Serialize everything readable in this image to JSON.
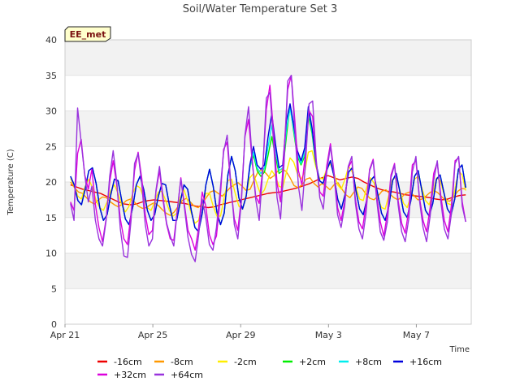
{
  "chart_data": {
    "type": "line",
    "title": "Soil/Water Temperature Set 3",
    "station_badge": "EE_met",
    "xlabel": "Time",
    "ylabel": "Temperature (C)",
    "ylim": [
      0,
      40
    ],
    "yticks": [
      0,
      5,
      10,
      15,
      20,
      25,
      30,
      35,
      40
    ],
    "xlim": [
      "2024-04-21",
      "2024-05-09T12:00"
    ],
    "xticks": [
      {
        "date": "2024-04-21",
        "label": "Apr 21"
      },
      {
        "date": "2024-04-25",
        "label": "Apr 25"
      },
      {
        "date": "2024-04-29",
        "label": "Apr 29"
      },
      {
        "date": "2024-05-03",
        "label": "May 3"
      },
      {
        "date": "2024-05-07",
        "label": "May 7"
      }
    ],
    "grid": true,
    "legend_position": "bottom",
    "series": [
      {
        "name": "-16cm",
        "color": "#ee0000",
        "x_start": "2024-04-21T06:00",
        "x_end": "2024-05-09T06:00",
        "values": [
          19.6,
          19.3,
          19.0,
          18.8,
          18.6,
          18.4,
          18.0,
          17.6,
          17.2,
          16.9,
          16.8,
          16.9,
          17.2,
          17.4,
          17.5,
          17.4,
          17.3,
          17.2,
          17.1,
          17.0,
          16.8,
          16.6,
          16.5,
          16.4,
          16.5,
          16.8,
          17.0,
          17.2,
          17.4,
          17.6,
          17.8,
          18.0,
          18.2,
          18.4,
          18.5,
          18.6,
          18.8,
          19.0,
          19.2,
          19.5,
          19.8,
          20.2,
          20.6,
          20.9,
          20.6,
          20.3,
          20.5,
          20.7,
          20.5,
          20.0,
          19.6,
          19.2,
          18.9,
          18.7,
          18.6,
          18.4,
          18.2,
          18.1,
          18.0,
          17.9,
          17.8,
          17.6,
          17.5,
          17.6,
          17.9,
          18.1,
          18.2
        ]
      },
      {
        "name": "-8cm",
        "color": "#ff9900",
        "x_start": "2024-04-21T06:00",
        "x_end": "2024-05-09T06:00",
        "values": [
          20.0,
          19.2,
          18.6,
          18.4,
          17.8,
          17.2,
          16.9,
          17.5,
          17.9,
          17.8,
          17.2,
          16.8,
          16.5,
          16.9,
          17.4,
          17.6,
          17.2,
          16.6,
          16.3,
          16.4,
          16.8,
          17.1,
          16.7,
          16.1,
          15.6,
          15.3,
          15.8,
          16.6,
          17.4,
          17.7,
          17.2,
          16.6,
          16.4,
          17.0,
          17.8,
          18.6,
          18.8,
          18.4,
          18.0,
          18.6,
          19.2,
          19.6,
          19.9,
          19.4,
          18.8,
          19.0,
          20.3,
          21.5,
          21.7,
          21.2,
          20.5,
          20.9,
          21.6,
          21.8,
          21.5,
          20.6,
          19.5,
          19.2,
          19.6,
          20.4,
          20.6,
          19.8,
          19.3,
          19.8,
          19.4,
          18.9,
          19.6,
          19.9,
          19.0,
          18.2,
          17.8,
          18.6,
          19.3,
          19.1,
          18.3,
          17.7,
          17.5,
          18.0,
          18.7,
          18.9,
          18.3,
          17.8,
          17.5,
          17.9,
          18.4,
          18.6,
          18.1,
          17.5,
          17.6,
          18.0,
          18.5,
          18.8,
          18.5,
          17.9,
          17.4,
          17.3,
          17.9,
          18.7,
          19.1,
          19.0
        ]
      },
      {
        "name": "-2cm",
        "color": "#ffee00",
        "x_start": "2024-04-21T06:00",
        "x_end": "2024-05-09T06:00",
        "values": [
          20.5,
          19.5,
          18.0,
          17.6,
          19.4,
          20.4,
          19.2,
          17.4,
          16.4,
          16.0,
          17.2,
          18.8,
          19.6,
          18.4,
          16.8,
          15.8,
          16.6,
          18.4,
          19.5,
          19.2,
          17.8,
          16.4,
          16.0,
          17.2,
          18.6,
          18.7,
          17.4,
          16.0,
          15.2,
          15.6,
          17.8,
          18.9,
          17.4,
          15.6,
          14.2,
          14.6,
          16.8,
          18.4,
          18.4,
          16.6,
          15.2,
          15.2,
          17.8,
          20.2,
          20.4,
          18.4,
          16.6,
          16.2,
          18.2,
          20.6,
          21.2,
          19.6,
          18.2,
          18.9,
          20.4,
          21.6,
          20.8,
          19.4,
          19.2,
          21.4,
          23.4,
          22.8,
          21.2,
          20.4,
          21.4,
          24.2,
          24.4,
          22.2,
          20.6,
          20.4,
          21.8,
          22.6,
          21.2,
          19.6,
          19.0,
          20.4,
          22.2,
          21.4,
          19.2,
          17.6,
          17.4,
          19.4,
          20.6,
          19.8,
          17.8,
          16.4,
          16.2,
          18.2,
          20.4,
          20.6,
          18.8,
          17.0,
          16.4,
          18.0,
          20.4,
          20.8,
          19.2,
          17.4,
          16.8,
          18.4,
          20.6,
          20.2,
          18.4,
          17.0,
          16.8,
          18.8,
          21.6,
          21.0,
          18.8
        ]
      },
      {
        "name": "+2cm",
        "color": "#00ee00",
        "x_start": "2024-04-21T06:00",
        "x_end": "2024-05-09T06:00",
        "values": [
          20.8,
          19.6,
          17.4,
          16.8,
          19.0,
          21.6,
          22.0,
          19.8,
          16.4,
          14.6,
          15.4,
          18.2,
          20.4,
          20.2,
          17.4,
          14.8,
          14.0,
          16.4,
          19.6,
          20.8,
          19.0,
          16.0,
          14.6,
          15.4,
          18.0,
          19.8,
          19.6,
          16.8,
          14.6,
          14.6,
          17.2,
          19.6,
          19.0,
          16.0,
          13.6,
          13.0,
          15.6,
          19.6,
          21.8,
          19.4,
          15.8,
          14.0,
          15.6,
          21.0,
          23.6,
          21.6,
          17.8,
          16.2,
          18.0,
          22.0,
          23.8,
          21.6,
          20.8,
          21.4,
          23.8,
          26.4,
          23.6,
          21.2,
          21.6,
          26.4,
          30.8,
          27.0,
          23.6,
          22.4,
          23.6,
          29.4,
          26.8,
          22.6,
          20.2,
          19.8,
          21.6,
          23.0,
          20.8,
          17.6,
          16.2,
          18.2,
          21.4,
          22.0,
          18.8,
          16.2,
          15.4,
          17.6,
          20.2,
          20.8,
          18.2,
          15.6,
          14.6,
          16.6,
          20.2,
          21.2,
          18.6,
          15.8,
          15.0,
          17.4,
          20.8,
          21.6,
          18.8,
          16.0,
          15.2,
          17.0,
          20.4,
          21.0,
          18.6,
          16.2,
          15.4,
          17.6,
          21.8,
          22.4,
          19.2
        ]
      },
      {
        "name": "+8cm",
        "color": "#00eeee",
        "x_start": "2024-04-21T06:00",
        "x_end": "2024-05-09T06:00",
        "values": [
          20.8,
          19.6,
          17.4,
          16.8,
          19.0,
          21.6,
          22.0,
          19.8,
          16.4,
          14.6,
          15.4,
          18.2,
          20.4,
          20.2,
          17.4,
          14.8,
          14.0,
          16.4,
          19.6,
          20.8,
          19.0,
          16.0,
          14.6,
          15.4,
          18.0,
          19.8,
          19.6,
          16.8,
          14.6,
          14.6,
          17.2,
          19.6,
          19.0,
          16.0,
          13.6,
          13.0,
          15.6,
          19.6,
          21.8,
          19.4,
          15.8,
          14.0,
          15.6,
          21.0,
          23.6,
          21.6,
          17.8,
          16.2,
          18.0,
          22.0,
          24.2,
          22.0,
          21.2,
          22.0,
          25.0,
          28.0,
          24.6,
          21.6,
          22.0,
          27.4,
          30.4,
          27.4,
          24.0,
          22.6,
          24.2,
          30.2,
          27.2,
          22.8,
          20.2,
          19.8,
          21.6,
          23.0,
          20.8,
          17.6,
          16.2,
          18.2,
          21.4,
          22.0,
          18.8,
          16.2,
          15.4,
          17.6,
          20.2,
          20.8,
          18.2,
          15.6,
          14.6,
          16.6,
          20.2,
          21.2,
          18.6,
          15.8,
          15.0,
          17.4,
          20.8,
          21.6,
          18.8,
          16.0,
          15.2,
          17.0,
          20.4,
          21.0,
          18.6,
          16.2,
          15.4,
          17.6,
          21.8,
          22.4,
          19.2
        ]
      },
      {
        "name": "+16cm",
        "color": "#0000dd",
        "x_start": "2024-04-21T06:00",
        "x_end": "2024-05-09T06:00",
        "values": [
          20.8,
          19.6,
          17.4,
          16.8,
          19.0,
          21.6,
          22.0,
          19.8,
          16.4,
          14.6,
          15.4,
          18.2,
          20.4,
          20.2,
          17.4,
          14.8,
          14.0,
          16.4,
          19.6,
          20.8,
          19.0,
          16.0,
          14.6,
          15.4,
          18.0,
          19.8,
          19.6,
          16.8,
          14.6,
          14.6,
          17.2,
          19.6,
          19.0,
          16.0,
          13.6,
          13.0,
          15.6,
          19.6,
          21.8,
          19.4,
          15.8,
          14.0,
          15.6,
          21.0,
          23.6,
          21.6,
          17.8,
          16.2,
          18.0,
          22.4,
          25.0,
          22.4,
          21.8,
          22.4,
          26.4,
          29.6,
          25.4,
          22.0,
          22.4,
          28.6,
          31.0,
          28.0,
          24.4,
          23.0,
          24.8,
          30.6,
          27.6,
          23.0,
          20.2,
          19.8,
          21.6,
          23.0,
          20.8,
          17.6,
          16.2,
          18.2,
          21.4,
          22.0,
          18.8,
          16.2,
          15.4,
          17.6,
          20.2,
          20.8,
          18.2,
          15.6,
          14.6,
          16.6,
          20.2,
          21.2,
          18.6,
          15.8,
          15.0,
          17.4,
          20.8,
          21.6,
          18.8,
          16.0,
          15.2,
          17.0,
          20.4,
          21.0,
          18.6,
          16.2,
          15.4,
          17.6,
          21.8,
          22.4,
          19.2
        ]
      },
      {
        "name": "+32cm",
        "color": "#dd00dd",
        "x_start": "2024-04-21T06:00",
        "x_end": "2024-05-09T06:00",
        "values": [
          17.2,
          16.0,
          24.0,
          26.0,
          21.0,
          19.0,
          21.8,
          16.8,
          13.6,
          11.6,
          14.8,
          20.0,
          23.0,
          19.6,
          14.8,
          12.0,
          11.2,
          15.6,
          21.6,
          24.2,
          20.6,
          15.4,
          12.6,
          13.2,
          18.6,
          21.6,
          17.4,
          14.0,
          12.0,
          11.8,
          16.0,
          20.6,
          16.8,
          13.2,
          12.0,
          10.4,
          13.6,
          18.6,
          16.6,
          12.6,
          11.2,
          12.4,
          17.4,
          24.6,
          25.6,
          19.4,
          14.8,
          13.2,
          17.8,
          26.4,
          28.8,
          23.0,
          18.0,
          17.0,
          22.0,
          30.2,
          33.6,
          27.0,
          19.8,
          17.2,
          24.4,
          33.0,
          35.0,
          28.6,
          21.6,
          19.6,
          24.0,
          30.0,
          29.2,
          22.6,
          18.6,
          18.0,
          22.4,
          25.4,
          21.4,
          16.4,
          14.6,
          17.2,
          22.0,
          23.0,
          17.6,
          14.4,
          13.4,
          16.8,
          21.8,
          23.2,
          18.0,
          14.4,
          12.4,
          15.6,
          21.0,
          22.6,
          17.4,
          14.2,
          12.8,
          16.0,
          22.4,
          23.0,
          17.8,
          14.6,
          13.0,
          16.4,
          21.2,
          22.8,
          18.0,
          14.6,
          13.0,
          16.8,
          23.0,
          23.4,
          17.2,
          14.4
        ]
      },
      {
        "name": "+64cm",
        "color": "#9933dd",
        "x_start": "2024-04-21T06:00",
        "x_end": "2024-05-09T06:00",
        "values": [
          17.0,
          14.6,
          30.4,
          25.6,
          21.0,
          17.2,
          19.4,
          14.6,
          12.0,
          11.0,
          14.6,
          20.8,
          24.4,
          20.0,
          13.4,
          9.6,
          9.4,
          14.6,
          22.6,
          24.0,
          19.8,
          14.0,
          11.0,
          12.0,
          18.8,
          22.2,
          17.8,
          14.2,
          12.4,
          11.0,
          16.0,
          20.4,
          16.4,
          12.2,
          9.8,
          8.8,
          12.6,
          17.6,
          15.0,
          11.2,
          10.4,
          13.6,
          18.6,
          24.2,
          26.6,
          20.0,
          14.0,
          12.0,
          17.2,
          26.6,
          30.6,
          23.4,
          17.6,
          14.6,
          21.6,
          31.8,
          32.6,
          25.8,
          17.8,
          14.8,
          22.8,
          34.2,
          35.0,
          27.4,
          19.4,
          16.0,
          22.6,
          31.0,
          31.4,
          23.2,
          17.8,
          16.2,
          21.6,
          25.0,
          21.0,
          15.4,
          13.6,
          16.6,
          22.2,
          23.6,
          17.0,
          13.4,
          12.0,
          15.6,
          21.6,
          23.0,
          17.4,
          13.0,
          11.8,
          14.4,
          20.6,
          22.4,
          16.8,
          13.0,
          11.6,
          14.8,
          21.4,
          23.6,
          17.4,
          13.6,
          11.6,
          15.2,
          20.2,
          23.0,
          17.2,
          13.4,
          12.0,
          15.6,
          22.6,
          23.6,
          16.6,
          14.4
        ]
      }
    ]
  }
}
